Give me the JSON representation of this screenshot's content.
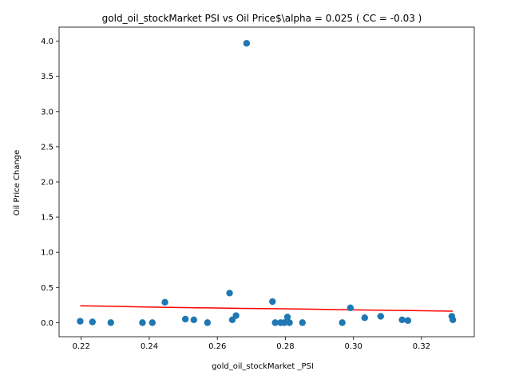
{
  "chart_data": {
    "type": "scatter",
    "title": "gold_oil_stockMarket  PSI vs Oil Price$\\alpha = 0.025 ( CC = -0.03 )",
    "xlabel": "gold_oil_stockMarket _PSI",
    "ylabel": "Oil Price Change",
    "xlim": [
      0.2135,
      0.3355
    ],
    "ylim": [
      -0.2,
      4.2
    ],
    "xticks": [
      0.22,
      0.24,
      0.26,
      0.28,
      0.3,
      0.32
    ],
    "xtick_labels": [
      "0.22",
      "0.24",
      "0.26",
      "0.28",
      "0.30",
      "0.32"
    ],
    "yticks": [
      0.0,
      0.5,
      1.0,
      1.5,
      2.0,
      2.5,
      3.0,
      3.5,
      4.0
    ],
    "ytick_labels": [
      "0.0",
      "0.5",
      "1.0",
      "1.5",
      "2.0",
      "2.5",
      "3.0",
      "3.5",
      "4.0"
    ],
    "grid": false,
    "colors": {
      "points": "#1f77b4",
      "fit_line": "#ff0000"
    },
    "points": [
      {
        "x": 0.2197,
        "y": 0.02
      },
      {
        "x": 0.2233,
        "y": 0.01
      },
      {
        "x": 0.2287,
        "y": 0.0
      },
      {
        "x": 0.238,
        "y": 0.0
      },
      {
        "x": 0.2409,
        "y": 0.0
      },
      {
        "x": 0.2446,
        "y": 0.29
      },
      {
        "x": 0.2506,
        "y": 0.05
      },
      {
        "x": 0.2531,
        "y": 0.04
      },
      {
        "x": 0.2571,
        "y": 0.0
      },
      {
        "x": 0.2636,
        "y": 0.42
      },
      {
        "x": 0.2644,
        "y": 0.04
      },
      {
        "x": 0.2655,
        "y": 0.1
      },
      {
        "x": 0.2686,
        "y": 3.97
      },
      {
        "x": 0.2762,
        "y": 0.3
      },
      {
        "x": 0.277,
        "y": 0.0
      },
      {
        "x": 0.2786,
        "y": 0.0
      },
      {
        "x": 0.2797,
        "y": 0.0
      },
      {
        "x": 0.2806,
        "y": 0.08
      },
      {
        "x": 0.2812,
        "y": 0.0
      },
      {
        "x": 0.285,
        "y": 0.0
      },
      {
        "x": 0.2967,
        "y": 0.0
      },
      {
        "x": 0.2991,
        "y": 0.21
      },
      {
        "x": 0.3033,
        "y": 0.07
      },
      {
        "x": 0.308,
        "y": 0.09
      },
      {
        "x": 0.3143,
        "y": 0.04
      },
      {
        "x": 0.316,
        "y": 0.03
      },
      {
        "x": 0.3289,
        "y": 0.09
      },
      {
        "x": 0.3292,
        "y": 0.04
      }
    ],
    "fit_line": [
      {
        "x": 0.2197,
        "y": 0.24
      },
      {
        "x": 0.2292,
        "y": 0.232
      },
      {
        "x": 0.2386,
        "y": 0.223
      },
      {
        "x": 0.2481,
        "y": 0.216
      },
      {
        "x": 0.2576,
        "y": 0.209
      },
      {
        "x": 0.267,
        "y": 0.202
      },
      {
        "x": 0.2765,
        "y": 0.198
      },
      {
        "x": 0.286,
        "y": 0.192
      },
      {
        "x": 0.2954,
        "y": 0.186
      },
      {
        "x": 0.3049,
        "y": 0.179
      },
      {
        "x": 0.3144,
        "y": 0.173
      },
      {
        "x": 0.3292,
        "y": 0.163
      }
    ]
  }
}
